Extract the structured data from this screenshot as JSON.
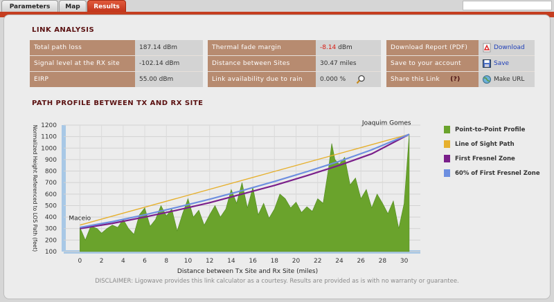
{
  "tabs": [
    {
      "label": "Parameters",
      "active": false
    },
    {
      "label": "Map",
      "active": false
    },
    {
      "label": "Results",
      "active": true
    }
  ],
  "link_analysis": {
    "title": "LINK ANALYSIS",
    "col1": [
      {
        "label": "Total path loss",
        "value": "187.14 dBm"
      },
      {
        "label": "Signal level at the RX site",
        "value": "-102.14 dBm"
      },
      {
        "label": "EIRP",
        "value": "55.00 dBm"
      }
    ],
    "col2": [
      {
        "label": "Thermal fade margin",
        "value_num": "-8.14",
        "value_unit": "dBm"
      },
      {
        "label": "Distance between Sites",
        "value": "30.47 miles"
      },
      {
        "label": "Link availability due to rain",
        "value": "0.000 %"
      }
    ],
    "col3": [
      {
        "label": "Download Report (PDF)",
        "action": "Download",
        "icon": "pdf-icon"
      },
      {
        "label": "Save to your account",
        "action": "Save",
        "icon": "save-icon"
      },
      {
        "label": "Share this Link",
        "help": "(?)",
        "action": "Make URL",
        "icon": "globe-icon"
      }
    ]
  },
  "path_profile": {
    "title": "PATH PROFILE BETWEEN TX AND RX SITE"
  },
  "chart_data": {
    "type": "area",
    "xlabel": "Distance between Tx Site and Rx Site (miles)",
    "ylabel": "Normalized Height Referenced to LOS Path (feet)",
    "xlim": [
      -1.5,
      31.5
    ],
    "ylim": [
      100,
      1200
    ],
    "xticks": [
      0,
      2,
      4,
      6,
      8,
      10,
      12,
      14,
      16,
      18,
      20,
      22,
      24,
      26,
      28,
      30
    ],
    "yticks": [
      100,
      200,
      300,
      400,
      500,
      600,
      700,
      800,
      900,
      1000,
      1100,
      1200
    ],
    "grid": true,
    "annotations": [
      {
        "text": "Maceio",
        "x": 0,
        "y": 300
      },
      {
        "text": "Joaquim Gomes",
        "x": 30.47,
        "y": 1120
      }
    ],
    "series": [
      {
        "name": "Point-to-Point Profile",
        "color": "#6aa32c",
        "x": [
          0,
          0.5,
          1,
          1.6,
          2,
          2.5,
          3,
          3.5,
          4,
          4.5,
          5,
          5.5,
          6,
          6.5,
          7,
          7.5,
          8,
          8.5,
          9,
          9.5,
          10,
          10.5,
          11,
          11.5,
          12,
          12.5,
          13,
          13.5,
          14,
          14.5,
          15,
          15.5,
          16,
          16.5,
          17,
          17.5,
          18,
          18.5,
          19,
          19.5,
          20,
          20.5,
          21,
          21.5,
          22,
          22.5,
          23,
          23.3,
          23.6,
          24,
          24.5,
          25,
          25.5,
          26,
          26.5,
          27,
          27.5,
          28,
          28.5,
          29,
          29.5,
          30,
          30.47
        ],
        "y": [
          310,
          200,
          320,
          300,
          260,
          300,
          330,
          310,
          380,
          300,
          250,
          420,
          480,
          320,
          380,
          500,
          410,
          470,
          280,
          430,
          560,
          400,
          460,
          330,
          420,
          500,
          400,
          470,
          640,
          520,
          700,
          480,
          660,
          420,
          520,
          390,
          470,
          600,
          560,
          480,
          530,
          440,
          490,
          450,
          560,
          520,
          820,
          1040,
          900,
          860,
          920,
          680,
          740,
          560,
          640,
          480,
          600,
          520,
          430,
          540,
          300,
          520,
          1120
        ]
      },
      {
        "name": "Line of Sight Path",
        "color": "#e6b02e",
        "x": [
          0,
          30.47
        ],
        "y": [
          330,
          1120
        ]
      },
      {
        "name": "First Fresnel Zone",
        "color": "#7a1f8a",
        "x": [
          0,
          3,
          6,
          9,
          12,
          15,
          18,
          21,
          24,
          27,
          30.47
        ],
        "y": [
          300,
          345,
          400,
          460,
          525,
          600,
          675,
          760,
          850,
          950,
          1120
        ]
      },
      {
        "name": "60% of First Fresnel Zone",
        "color": "#6d8fe0",
        "x": [
          0,
          3,
          6,
          9,
          12,
          15,
          18,
          21,
          24,
          27,
          30.47
        ],
        "y": [
          310,
          360,
          420,
          485,
          555,
          630,
          710,
          795,
          885,
          985,
          1120
        ]
      }
    ]
  },
  "disclaimer": "DISCLAIMER: Ligowave provides this link calculator as a courtesy.  Results are provided as is with no warranty or guarantee."
}
